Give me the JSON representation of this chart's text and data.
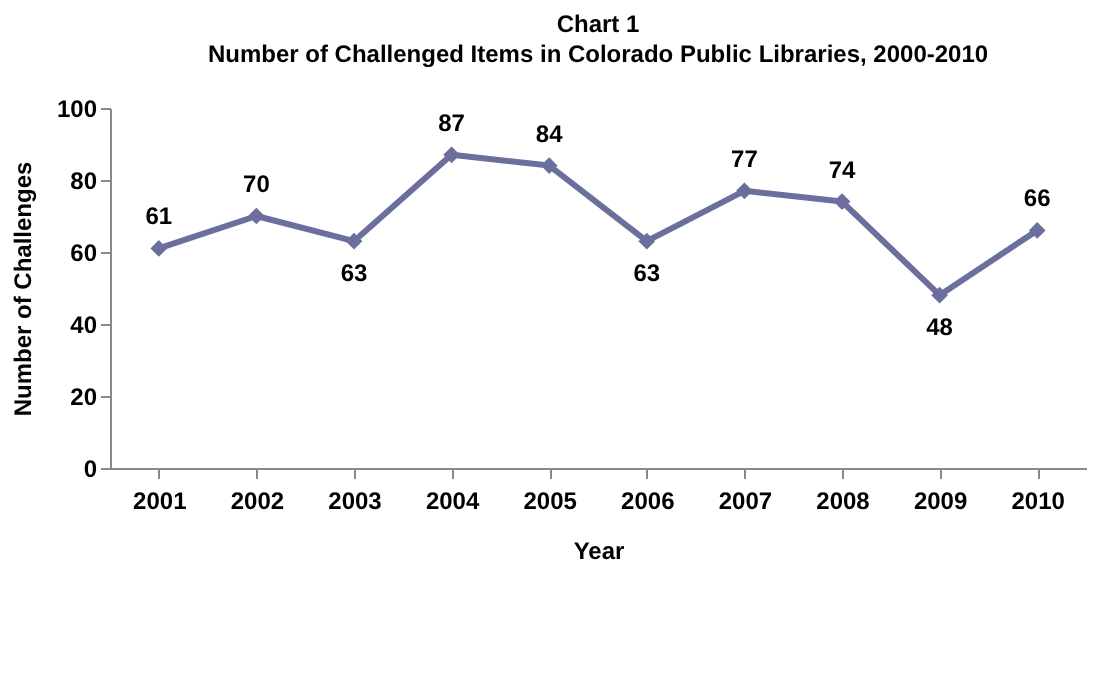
{
  "chart_data": {
    "type": "line",
    "title": "Chart 1",
    "subtitle": "Number of Challenged Items in Colorado Public Libraries, 2000-2010",
    "xlabel": "Year",
    "ylabel": "Number of Challenges",
    "categories": [
      "2001",
      "2002",
      "2003",
      "2004",
      "2005",
      "2006",
      "2007",
      "2008",
      "2009",
      "2010"
    ],
    "values": [
      61,
      70,
      63,
      87,
      84,
      63,
      77,
      74,
      48,
      66
    ],
    "color": "#6b6f9e",
    "ylim": [
      0,
      100
    ],
    "yticks": [
      0,
      20,
      40,
      60,
      80,
      100
    ],
    "grid": false,
    "marker": "diamond",
    "line_style": "solid",
    "data_labels": true
  }
}
